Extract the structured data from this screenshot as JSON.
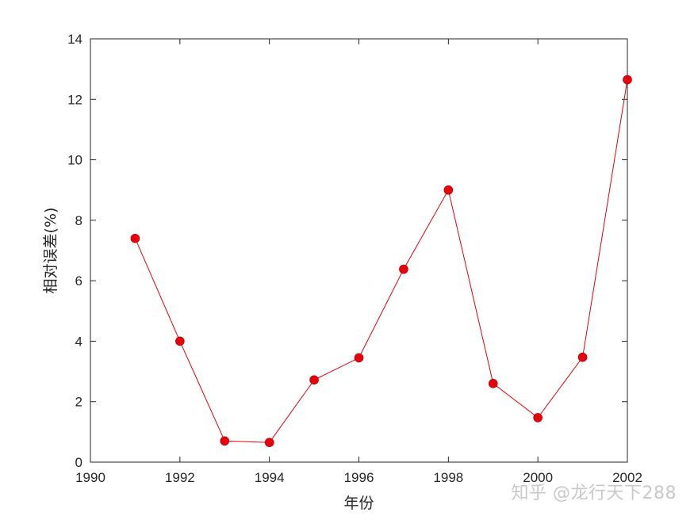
{
  "chart_data": {
    "type": "line",
    "title": "",
    "xlabel": "年份",
    "ylabel": "相对误差(%)",
    "xlim": [
      1990,
      2002
    ],
    "ylim": [
      0,
      14
    ],
    "x_ticks": [
      1990,
      1992,
      1994,
      1996,
      1998,
      2000,
      2002
    ],
    "y_ticks": [
      0,
      2,
      4,
      6,
      8,
      10,
      12,
      14
    ],
    "grid": false,
    "legend": "none",
    "series": [
      {
        "color": "#e8000b",
        "marker": "circle",
        "x": [
          1991,
          1992,
          1993,
          1994,
          1995,
          1996,
          1997,
          1998,
          1999,
          2000,
          2001,
          2002
        ],
        "y": [
          7.4,
          4.0,
          0.7,
          0.65,
          2.72,
          3.45,
          6.38,
          9.0,
          2.6,
          1.47,
          3.47,
          12.65
        ]
      }
    ]
  },
  "watermark": "知乎 @龙行天下288"
}
